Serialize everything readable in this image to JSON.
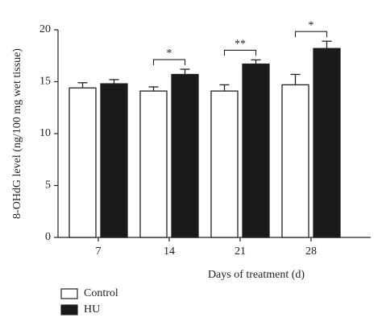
{
  "chart_data": {
    "type": "bar",
    "x_label": "Days of treatment (d)",
    "y_label": "8-OHdG level (ng/100 mg wet tissue)",
    "categories": [
      "7",
      "14",
      "21",
      "28"
    ],
    "series": [
      {
        "name": "Control",
        "color": "#ffffff",
        "values": [
          14.4,
          14.1,
          14.1,
          14.7
        ],
        "errors": [
          0.5,
          0.4,
          0.6,
          1.0
        ]
      },
      {
        "name": "HU",
        "color": "#1a1a1a",
        "values": [
          14.8,
          15.7,
          16.7,
          18.2
        ],
        "errors": [
          0.4,
          0.5,
          0.4,
          0.7
        ]
      }
    ],
    "annotations": [
      {
        "category": "14",
        "text": "*"
      },
      {
        "category": "21",
        "text": "**"
      },
      {
        "category": "28",
        "text": "*"
      }
    ],
    "ylim": [
      0,
      20
    ],
    "yticks": [
      0,
      5,
      10,
      15,
      20
    ],
    "grid": false
  }
}
